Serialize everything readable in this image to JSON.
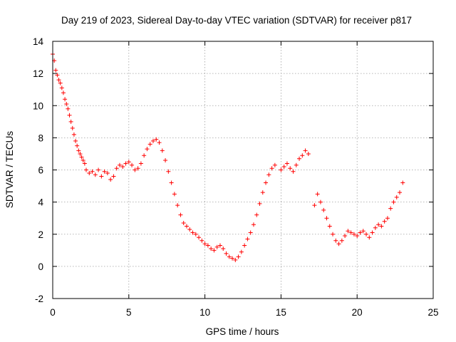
{
  "chart_data": {
    "type": "scatter",
    "title": "Day 219 of 2023, Sidereal Day-to-day VTEC variation (SDTVAR) for receiver p817",
    "xlabel": "GPS time / hours",
    "ylabel": "SDTVAR / TECUs",
    "xlim": [
      0,
      25
    ],
    "ylim": [
      -2,
      14
    ],
    "xticks": [
      0,
      5,
      10,
      15,
      20,
      25
    ],
    "yticks": [
      -2,
      0,
      2,
      4,
      6,
      8,
      10,
      12,
      14
    ],
    "grid": true,
    "marker": "+",
    "color": "#ff0000",
    "series": [
      {
        "name": "SDTVAR",
        "x": [
          0.0,
          0.1,
          0.2,
          0.3,
          0.4,
          0.5,
          0.6,
          0.7,
          0.8,
          0.9,
          1.0,
          1.1,
          1.2,
          1.3,
          1.4,
          1.5,
          1.6,
          1.7,
          1.8,
          1.9,
          2.0,
          2.1,
          2.2,
          2.4,
          2.6,
          2.8,
          3.0,
          3.2,
          3.4,
          3.6,
          3.8,
          4.0,
          4.2,
          4.4,
          4.6,
          4.8,
          5.0,
          5.2,
          5.4,
          5.6,
          5.8,
          6.0,
          6.2,
          6.4,
          6.6,
          6.8,
          7.0,
          7.2,
          7.4,
          7.6,
          7.8,
          8.0,
          8.2,
          8.4,
          8.6,
          8.8,
          9.0,
          9.2,
          9.4,
          9.6,
          9.8,
          10.0,
          10.2,
          10.4,
          10.6,
          10.8,
          11.0,
          11.2,
          11.4,
          11.6,
          11.8,
          12.0,
          12.2,
          12.4,
          12.6,
          12.8,
          13.0,
          13.2,
          13.4,
          13.6,
          13.8,
          14.0,
          14.2,
          14.4,
          14.6,
          15.0,
          15.2,
          15.4,
          15.6,
          15.8,
          16.0,
          16.2,
          16.4,
          16.6,
          16.8,
          17.2,
          17.4,
          17.6,
          17.8,
          18.0,
          18.2,
          18.4,
          18.6,
          18.8,
          19.0,
          19.2,
          19.4,
          19.6,
          19.8,
          20.0,
          20.2,
          20.4,
          20.6,
          20.8,
          21.0,
          21.2,
          21.4,
          21.6,
          21.8,
          22.0,
          22.2,
          22.4,
          22.6,
          22.8,
          23.0
        ],
        "y": [
          13.2,
          12.8,
          12.2,
          11.9,
          11.6,
          11.4,
          11.1,
          10.8,
          10.4,
          10.1,
          9.8,
          9.4,
          9.0,
          8.6,
          8.2,
          7.8,
          7.5,
          7.2,
          7.0,
          6.8,
          6.6,
          6.4,
          6.0,
          5.8,
          5.9,
          5.7,
          6.0,
          5.6,
          5.9,
          5.8,
          5.4,
          5.6,
          6.1,
          6.3,
          6.2,
          6.4,
          6.5,
          6.3,
          6.0,
          6.1,
          6.4,
          6.9,
          7.3,
          7.6,
          7.8,
          7.9,
          7.7,
          7.2,
          6.6,
          5.9,
          5.2,
          4.5,
          3.8,
          3.2,
          2.7,
          2.5,
          2.3,
          2.1,
          2.0,
          1.8,
          1.6,
          1.4,
          1.3,
          1.1,
          1.0,
          1.2,
          1.3,
          1.1,
          0.8,
          0.6,
          0.5,
          0.4,
          0.6,
          0.9,
          1.3,
          1.7,
          2.1,
          2.6,
          3.2,
          3.9,
          4.6,
          5.2,
          5.7,
          6.1,
          6.3,
          6.0,
          6.2,
          6.4,
          6.1,
          5.9,
          6.3,
          6.7,
          6.9,
          7.2,
          7.0,
          3.8,
          4.5,
          4.0,
          3.5,
          3.0,
          2.5,
          2.0,
          1.6,
          1.4,
          1.6,
          1.9,
          2.2,
          2.1,
          2.0,
          1.9,
          2.1,
          2.2,
          2.0,
          1.8,
          2.1,
          2.4,
          2.6,
          2.5,
          2.8,
          3.0,
          3.6,
          4.0,
          4.3,
          4.6,
          5.2
        ]
      }
    ]
  }
}
